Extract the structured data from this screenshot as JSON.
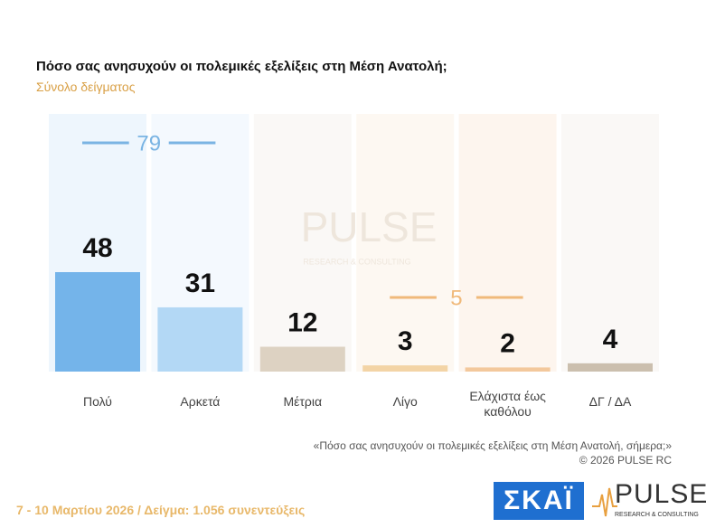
{
  "chart_data": {
    "type": "bar",
    "title": "Πόσο σας ανησυχούν οι πολεμικές εξελίξεις στη Μέση Ανατολή;",
    "subtitle": "Σύνολο δείγματος",
    "categories": [
      "Πολύ",
      "Αρκετά",
      "Μέτρια",
      "Λίγο",
      "Ελάχιστα έως καθόλου",
      "ΔΓ / ΔΑ"
    ],
    "values": [
      48,
      31,
      12,
      3,
      2,
      4
    ],
    "colors": [
      "#74b4ea",
      "#b3d8f5",
      "#ddd2c2",
      "#f3d4a6",
      "#f3c89c",
      "#cbbfae"
    ],
    "annotations": [
      79,
      5
    ],
    "annotation_colors": [
      "#7ab4e3",
      "#f0b97a"
    ]
  },
  "note": "«Πόσο σας ανησυχούν οι πολεμικές εξελίξεις στη Μέση Ανατολή, σήμερα;»",
  "copyright": "©  2026  PULSE RC",
  "footer": "7 - 10  Μαρτίου 2026  /  Δείγμα:  1.056 συνεντεύξεις",
  "logos": {
    "skai": "ΣΚΑΪ",
    "pulse": "PULSE",
    "pulse_tagline": "RESEARCH & CONSULTING"
  },
  "watermark": {
    "title": "PULSE",
    "tagline": "RESEARCH & CONSULTING"
  }
}
